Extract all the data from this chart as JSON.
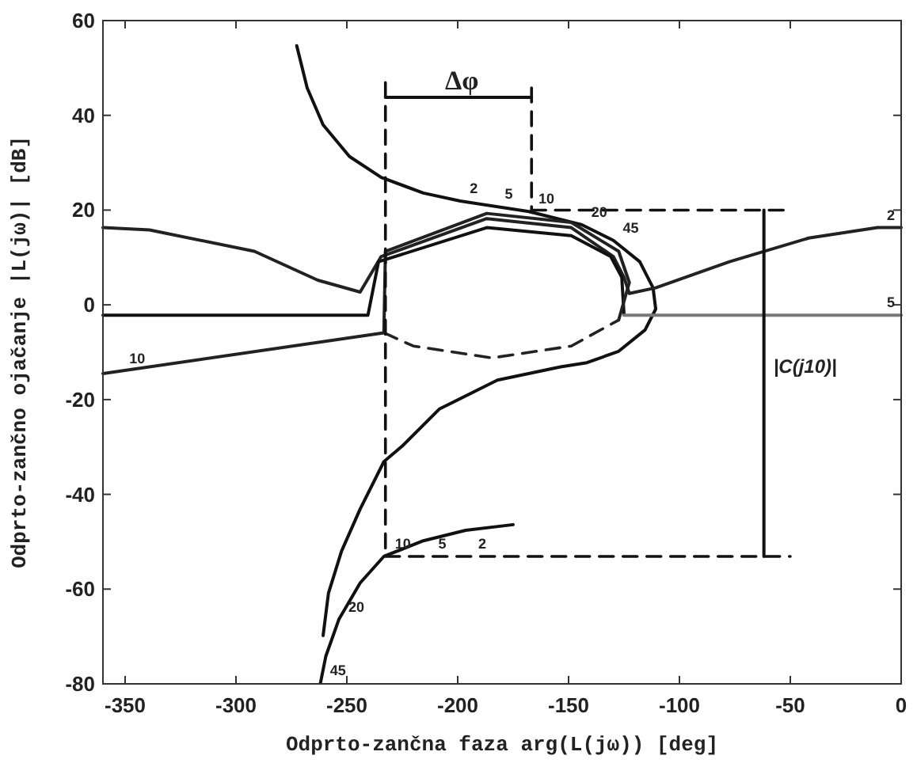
{
  "chart_data": {
    "type": "line",
    "xlabel": "Odprto-zančna faza arg(L(jω)) [deg]",
    "ylabel": "Odprto-zančno ojačanje |L(jω)| [dB]",
    "xlim": [
      -360,
      0
    ],
    "ylim": [
      -80,
      60
    ],
    "xticks": [
      -350,
      -300,
      -250,
      -200,
      -150,
      -100,
      -50,
      0
    ],
    "yticks": [
      -80,
      -60,
      -40,
      -20,
      0,
      20,
      40,
      60
    ],
    "grid": false,
    "marker": "none",
    "series": [
      {
        "color": "#111111",
        "line_style": "solid",
        "x": [
          -272.6,
          -267.9,
          -260.7,
          -248.8,
          -234.5,
          -215.5,
          -198.8,
          -167.9,
          -144,
          -129.8,
          -117.9,
          -111.9,
          -110.7,
          -115.5,
          -127.4,
          -141.7,
          -153.6,
          -182.1,
          -208.3,
          -225,
          -233.3,
          -244,
          -252.4,
          -258.3,
          -260.7
        ],
        "values": [
          54.7,
          45.8,
          38,
          31.3,
          26.9,
          23.6,
          21.9,
          19.7,
          16.9,
          13.6,
          9.1,
          3.6,
          -0.9,
          -5.3,
          -9.8,
          -12.2,
          -13.1,
          -15.9,
          -22,
          -29.8,
          -33.1,
          -43.1,
          -52,
          -60.9,
          -69.8
        ]
      },
      {
        "color": "#111111",
        "line_style": "solid",
        "x": [
          -175,
          -196.4,
          -215.5,
          -233.3,
          -244,
          -253.6,
          -259.5,
          -261.9
        ],
        "values": [
          -46.4,
          -47.6,
          -49.8,
          -53.1,
          -58.7,
          -66.4,
          -74.2,
          -79.8
        ]
      },
      {
        "color": "#222222",
        "line_style": "solid",
        "x": [
          -360,
          -339,
          -291.7,
          -263.1,
          -244,
          -234.5,
          -186.9,
          -148.8,
          -129.8,
          -125,
          -122.6,
          -110.7,
          -77.4,
          -41.7,
          -10.7,
          0
        ],
        "values": [
          16.3,
          15.8,
          11.3,
          5.2,
          2.7,
          10.2,
          18.2,
          16.3,
          10.2,
          5.8,
          2.4,
          3.6,
          9.1,
          14.1,
          16.3,
          16.3
        ]
      },
      {
        "color": "#111111",
        "line_style": "solid",
        "x": [
          -360,
          -240.5,
          -235.7,
          -186.9,
          -148.8,
          -131,
          -126,
          -125
        ],
        "values": [
          -2.2,
          -2.2,
          9.1,
          16.3,
          14.6,
          10.2,
          5.8,
          -2.1
        ]
      },
      {
        "color": "#777777",
        "line_style": "solid",
        "x": [
          -125,
          0
        ],
        "values": [
          -2.2,
          -2.2
        ]
      },
      {
        "color": "#222222",
        "line_style": "solid",
        "x": [
          -360,
          -233.3,
          -232.6,
          -186.9,
          -148.8,
          -127.4,
          -122.6,
          -127.4
        ],
        "values": [
          -14.5,
          -5.9,
          11.3,
          19.3,
          17.4,
          11.3,
          4.7,
          -3.2
        ]
      },
      {
        "color": "#222222",
        "line_style": "dashed",
        "x": [
          -233.3,
          -220,
          -184.5,
          -148.8,
          -127.4
        ],
        "values": [
          -5.9,
          -8.7,
          -11.2,
          -8.7,
          -3.2
        ]
      },
      {
        "color": "#111111",
        "line_style": "dashed",
        "x": [
          -232.6,
          -232.6
        ],
        "values": [
          46.9,
          -53.1
        ]
      },
      {
        "color": "#111111",
        "line_style": "dashed",
        "x": [
          -166.7,
          -166.7
        ],
        "values": [
          45.8,
          20
        ]
      },
      {
        "color": "#111111",
        "line_style": "dashed",
        "x": [
          -166.7,
          -52.4
        ],
        "values": [
          20,
          20
        ]
      },
      {
        "color": "#111111",
        "line_style": "dashed",
        "x": [
          -232.6,
          -50
        ],
        "values": [
          -53.1,
          -53.1
        ]
      },
      {
        "color": "#111111",
        "line_style": "solid",
        "x": [
          -232.6,
          -166.7
        ],
        "values": [
          43.8,
          43.8
        ]
      },
      {
        "color": "#111111",
        "line_style": "solid",
        "x": [
          -61.9,
          -61.9
        ],
        "values": [
          -53.1,
          20
        ]
      }
    ],
    "annotations": [
      {
        "text": "Δφ",
        "x": -210,
        "y": 43.8
      },
      {
        "text": "|C(j10)|",
        "x": -61.9,
        "y": -16
      },
      {
        "text": "2",
        "x": -198.8,
        "y": 21.9
      },
      {
        "text": "5",
        "x": -183,
        "y": 20.8
      },
      {
        "text": "10",
        "x": -167.9,
        "y": 19.7
      },
      {
        "text": "20",
        "x": -144,
        "y": 16.9
      },
      {
        "text": "45",
        "x": -129.8,
        "y": 13.6
      },
      {
        "text": "2",
        "x": -195,
        "y": -53.1
      },
      {
        "text": "5",
        "x": -213,
        "y": -53.1
      },
      {
        "text": "10",
        "x": -232.6,
        "y": -53.1
      },
      {
        "text": "20",
        "x": -253.6,
        "y": -66.4
      },
      {
        "text": "45",
        "x": -261.9,
        "y": -79.8
      },
      {
        "text": "2",
        "x": -10.7,
        "y": 16.3
      },
      {
        "text": "5",
        "x": -10.7,
        "y": -2.2
      },
      {
        "text": "10",
        "x": -352.4,
        "y": -14.0
      }
    ]
  }
}
